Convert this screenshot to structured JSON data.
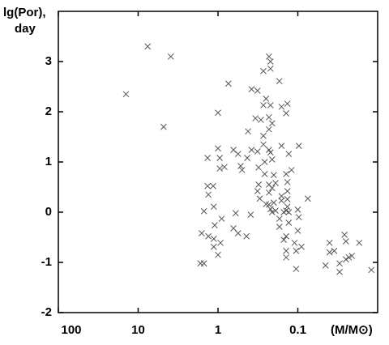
{
  "chart_data": {
    "type": "scatter",
    "ylabel": [
      "lg(Por),",
      "day"
    ],
    "xlabel": "(M/M⊙)",
    "xscale": "log",
    "xlim": [
      100,
      0.01
    ],
    "xticks": [
      100,
      10,
      1,
      0.1
    ],
    "ylim": [
      -2,
      4
    ],
    "yticks": [
      -2,
      -1,
      0,
      1,
      2,
      3
    ],
    "color": "#555555",
    "series": [
      {
        "name": null,
        "color": "#555555",
        "x": [
          14.2,
          7.6,
          3.9,
          4.8,
          1.0,
          0.74,
          1.35,
          1.0,
          0.95,
          0.95,
          0.83,
          1.15,
          1.35,
          1.32,
          1.13,
          1.5,
          0.9,
          1.1,
          1.6,
          1.32,
          1.13,
          0.93,
          1.66,
          1.5,
          1.13,
          1.0,
          0.64,
          0.56,
          0.52,
          0.5,
          0.42,
          0.43,
          0.6,
          0.64,
          0.56,
          0.44,
          0.39,
          0.38,
          0.32,
          0.34,
          0.29,
          0.38,
          0.32,
          0.31,
          0.31,
          0.32,
          0.3,
          0.27,
          0.27,
          0.25,
          0.27,
          0.27,
          0.26,
          0.26,
          0.23,
          0.23,
          0.23,
          0.22,
          0.21,
          0.23,
          0.25,
          0.23,
          0.22,
          0.22,
          0.22,
          0.21,
          0.23,
          0.23,
          0.22,
          0.21,
          0.21,
          0.2,
          0.19,
          0.2,
          0.19,
          0.17,
          0.17,
          0.16,
          0.16,
          0.16,
          0.16,
          0.15,
          0.14,
          0.13,
          0.17,
          0.14,
          0.135,
          0.135,
          0.135,
          0.135,
          0.13,
          0.14,
          0.15,
          0.14,
          0.14,
          0.135,
          0.14,
          0.13,
          0.12,
          0.11,
          0.105,
          0.1,
          0.1,
          0.097,
          0.097,
          0.105,
          0.09,
          0.075,
          0.04,
          0.045,
          0.04,
          0.035,
          0.03,
          0.03,
          0.026,
          0.025,
          0.025,
          0.023,
          0.021,
          0.017,
          0.012
        ],
        "values": [
          2.35,
          3.3,
          3.1,
          1.7,
          1.98,
          2.56,
          1.08,
          1.27,
          1.08,
          0.87,
          0.9,
          0.52,
          0.52,
          0.35,
          0.11,
          0.02,
          -0.13,
          -0.26,
          -0.42,
          -0.48,
          -0.53,
          -0.61,
          -1.02,
          -1.02,
          -0.69,
          -0.85,
          1.24,
          1.16,
          0.92,
          0.84,
          1.61,
          1.08,
          -0.02,
          -0.32,
          -0.42,
          -0.48,
          -0.05,
          2.45,
          2.42,
          1.87,
          1.84,
          1.24,
          1.21,
          0.89,
          0.55,
          0.42,
          0.27,
          2.81,
          2.13,
          2.26,
          1.52,
          1.35,
          1.0,
          0.76,
          1.89,
          1.65,
          1.24,
          1.19,
          1.05,
          0.55,
          0.16,
          3.1,
          3.0,
          2.86,
          2.13,
          1.77,
          0.39,
          0.15,
          0.06,
          0.0,
          0.48,
          0.74,
          0.58,
          0.19,
          0.03,
          -0.13,
          -0.29,
          2.1,
          1.32,
          0.32,
          0.23,
          0.0,
          0.03,
          0.0,
          2.61,
          0.76,
          0.6,
          0.42,
          0.26,
          0.11,
          -0.21,
          -0.48,
          -0.55,
          -0.77,
          -0.9,
          2.16,
          1.97,
          1.16,
          0.84,
          -0.61,
          -0.77,
          -0.37,
          0.05,
          1.32,
          -0.1,
          -1.13,
          -0.69,
          0.27,
          -0.61,
          -1.06,
          -0.8,
          -0.77,
          -1.02,
          -1.19,
          -0.45,
          -0.58,
          -0.94,
          -0.9,
          -0.87,
          -0.61,
          -1.15
        ]
      }
    ]
  }
}
